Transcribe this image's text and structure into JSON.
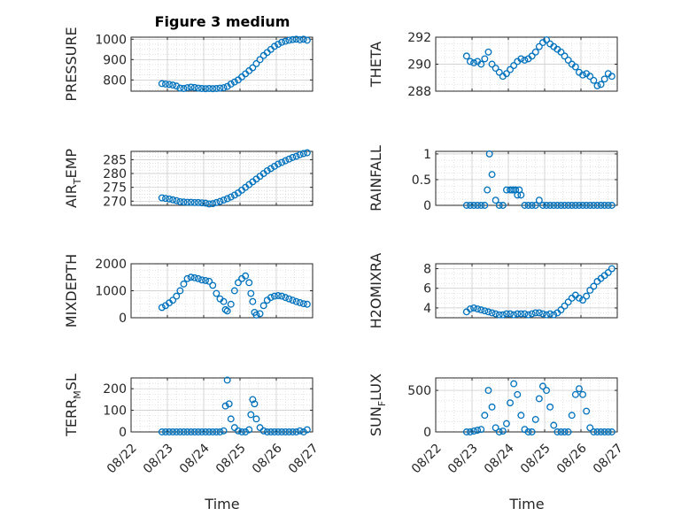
{
  "figure": {
    "title": "Figure 3 medium",
    "xlabel": "Time",
    "marker_color": "#0072BD"
  },
  "chart_data": [
    {
      "type": "scatter",
      "ylabel": "PRESSURE",
      "ylabel_sub": "",
      "ylim": [
        745,
        1010
      ],
      "yticks": [
        800,
        900,
        1000
      ],
      "xlim": [
        0,
        5
      ],
      "x": [
        0.85,
        0.95,
        1.05,
        1.15,
        1.25,
        1.35,
        1.45,
        1.55,
        1.65,
        1.75,
        1.85,
        1.95,
        2.05,
        2.15,
        2.25,
        2.35,
        2.45,
        2.55,
        2.65,
        2.75,
        2.85,
        2.95,
        3.05,
        3.15,
        3.25,
        3.35,
        3.45,
        3.55,
        3.65,
        3.75,
        3.85,
        3.95,
        4.05,
        4.15,
        4.25,
        4.35,
        4.45,
        4.55,
        4.65,
        4.75,
        4.85
      ],
      "y": [
        782,
        780,
        778,
        775,
        770,
        760,
        758,
        762,
        765,
        763,
        760,
        758,
        757,
        758,
        757,
        758,
        760,
        762,
        768,
        780,
        790,
        800,
        815,
        830,
        845,
        860,
        880,
        900,
        920,
        935,
        950,
        965,
        975,
        985,
        990,
        995,
        998,
        1000,
        997,
        1000,
        995
      ]
    },
    {
      "type": "scatter",
      "ylabel": "THETA",
      "ylabel_sub": "",
      "ylim": [
        288,
        292
      ],
      "yticks": [
        288,
        290,
        292
      ],
      "xlim": [
        0,
        5
      ],
      "x": [
        0.85,
        0.95,
        1.05,
        1.15,
        1.25,
        1.35,
        1.45,
        1.55,
        1.65,
        1.75,
        1.85,
        1.95,
        2.05,
        2.15,
        2.25,
        2.35,
        2.45,
        2.55,
        2.65,
        2.75,
        2.85,
        2.95,
        3.05,
        3.15,
        3.25,
        3.35,
        3.45,
        3.55,
        3.65,
        3.75,
        3.85,
        3.95,
        4.05,
        4.15,
        4.25,
        4.35,
        4.45,
        4.55,
        4.65,
        4.75,
        4.85
      ],
      "y": [
        290.6,
        290.2,
        290.1,
        290.2,
        290.0,
        290.4,
        290.9,
        290.0,
        289.7,
        289.4,
        289.1,
        289.3,
        289.6,
        289.9,
        290.2,
        290.4,
        290.3,
        290.4,
        290.6,
        290.9,
        291.3,
        291.6,
        291.8,
        291.5,
        291.3,
        291.1,
        290.9,
        290.6,
        290.3,
        290.0,
        289.8,
        289.4,
        289.2,
        289.3,
        289.1,
        288.8,
        288.4,
        288.5,
        288.9,
        289.3,
        289.1
      ]
    },
    {
      "type": "scatter",
      "ylabel": "AIR",
      "ylabel_sub": "T",
      "ylabel_suffix": "EMP",
      "ylim": [
        268.5,
        288
      ],
      "yticks": [
        270,
        275,
        280,
        285
      ],
      "xlim": [
        0,
        5
      ],
      "x": [
        0.85,
        0.95,
        1.05,
        1.15,
        1.25,
        1.35,
        1.45,
        1.55,
        1.65,
        1.75,
        1.85,
        1.95,
        2.05,
        2.15,
        2.25,
        2.35,
        2.45,
        2.55,
        2.65,
        2.75,
        2.85,
        2.95,
        3.05,
        3.15,
        3.25,
        3.35,
        3.45,
        3.55,
        3.65,
        3.75,
        3.85,
        3.95,
        4.05,
        4.15,
        4.25,
        4.35,
        4.45,
        4.55,
        4.65,
        4.75,
        4.85
      ],
      "y": [
        271.2,
        271.0,
        270.8,
        270.5,
        270.2,
        269.8,
        269.7,
        269.6,
        269.6,
        269.5,
        269.5,
        269.4,
        269.3,
        269.0,
        269.1,
        269.5,
        269.9,
        270.4,
        270.9,
        271.5,
        272.2,
        273.0,
        274.0,
        275.0,
        276.0,
        277.0,
        278.0,
        279.0,
        280.0,
        281.0,
        281.8,
        282.6,
        283.4,
        284.0,
        284.6,
        285.2,
        285.8,
        286.2,
        286.8,
        287.2,
        287.5
      ]
    },
    {
      "type": "scatter",
      "ylabel": "RAINFALL",
      "ylabel_sub": "",
      "ylim": [
        0,
        1.05
      ],
      "yticks": [
        0,
        0.5,
        1
      ],
      "yticklabels": [
        "0",
        "0.5",
        "1"
      ],
      "xlim": [
        0,
        5
      ],
      "x": [
        0.85,
        0.95,
        1.05,
        1.15,
        1.25,
        1.35,
        1.42,
        1.48,
        1.55,
        1.65,
        1.75,
        1.85,
        1.95,
        2.05,
        2.1,
        2.15,
        2.2,
        2.25,
        2.3,
        2.35,
        2.45,
        2.55,
        2.65,
        2.75,
        2.85,
        2.95,
        3.05,
        3.15,
        3.25,
        3.35,
        3.45,
        3.55,
        3.65,
        3.75,
        3.85,
        3.95,
        4.05,
        4.15,
        4.25,
        4.35,
        4.45,
        4.55,
        4.65,
        4.75,
        4.85
      ],
      "y": [
        0,
        0,
        0,
        0,
        0,
        0,
        0.3,
        1.0,
        0.6,
        0.1,
        0,
        0,
        0.3,
        0.3,
        0.3,
        0.3,
        0.3,
        0.2,
        0.3,
        0.2,
        0,
        0,
        0,
        0,
        0.1,
        0,
        0,
        0,
        0,
        0,
        0,
        0,
        0,
        0,
        0,
        0,
        0,
        0,
        0,
        0,
        0,
        0,
        0,
        0,
        0
      ]
    },
    {
      "type": "scatter",
      "ylabel": "MIXDEPTH",
      "ylabel_sub": "",
      "ylim": [
        0,
        2000
      ],
      "yticks": [
        0,
        1000,
        2000
      ],
      "xlim": [
        0,
        5
      ],
      "x": [
        0.85,
        0.95,
        1.05,
        1.15,
        1.25,
        1.35,
        1.45,
        1.55,
        1.65,
        1.75,
        1.85,
        1.95,
        2.05,
        2.15,
        2.25,
        2.35,
        2.45,
        2.55,
        2.6,
        2.65,
        2.75,
        2.85,
        2.95,
        3.05,
        3.15,
        3.25,
        3.3,
        3.35,
        3.4,
        3.45,
        3.55,
        3.65,
        3.75,
        3.85,
        3.95,
        4.05,
        4.15,
        4.25,
        4.35,
        4.45,
        4.55,
        4.65,
        4.75,
        4.85
      ],
      "y": [
        380,
        450,
        550,
        650,
        800,
        1000,
        1250,
        1450,
        1500,
        1480,
        1450,
        1400,
        1380,
        1350,
        1200,
        900,
        700,
        600,
        300,
        250,
        500,
        1000,
        1300,
        1450,
        1550,
        1300,
        900,
        600,
        200,
        100,
        150,
        450,
        650,
        750,
        800,
        820,
        800,
        750,
        700,
        650,
        600,
        560,
        520,
        500
      ]
    },
    {
      "type": "scatter",
      "ylabel": "H2OMIXRA",
      "ylabel_sub": "",
      "ylim": [
        3,
        8.5
      ],
      "yticks": [
        4,
        6,
        8
      ],
      "xlim": [
        0,
        5
      ],
      "x": [
        0.85,
        0.95,
        1.05,
        1.15,
        1.25,
        1.35,
        1.45,
        1.55,
        1.65,
        1.75,
        1.85,
        1.95,
        2.05,
        2.15,
        2.25,
        2.35,
        2.45,
        2.55,
        2.65,
        2.75,
        2.85,
        2.95,
        3.05,
        3.15,
        3.25,
        3.35,
        3.45,
        3.55,
        3.65,
        3.75,
        3.85,
        3.95,
        4.05,
        4.15,
        4.25,
        4.35,
        4.45,
        4.55,
        4.65,
        4.75,
        4.85
      ],
      "y": [
        3.6,
        3.9,
        4.0,
        3.9,
        3.8,
        3.7,
        3.6,
        3.5,
        3.4,
        3.3,
        3.3,
        3.4,
        3.4,
        3.3,
        3.4,
        3.4,
        3.4,
        3.3,
        3.4,
        3.5,
        3.5,
        3.4,
        3.3,
        3.4,
        3.3,
        3.5,
        3.8,
        4.2,
        4.6,
        5.0,
        5.3,
        5.0,
        4.8,
        5.2,
        5.8,
        6.2,
        6.7,
        7.0,
        7.3,
        7.6,
        8.0
      ]
    },
    {
      "type": "scatter",
      "ylabel": "TERR",
      "ylabel_sub": "M",
      "ylabel_suffix": "SL",
      "ylim": [
        0,
        250
      ],
      "yticks": [
        0,
        100,
        200
      ],
      "xlim": [
        0,
        5
      ],
      "x": [
        0.85,
        0.95,
        1.05,
        1.15,
        1.25,
        1.35,
        1.45,
        1.55,
        1.65,
        1.75,
        1.85,
        1.95,
        2.05,
        2.15,
        2.25,
        2.35,
        2.45,
        2.55,
        2.6,
        2.65,
        2.7,
        2.75,
        2.85,
        2.95,
        3.05,
        3.15,
        3.25,
        3.3,
        3.35,
        3.4,
        3.45,
        3.55,
        3.65,
        3.75,
        3.85,
        3.95,
        4.05,
        4.15,
        4.25,
        4.35,
        4.45,
        4.55,
        4.65,
        4.75,
        4.85
      ],
      "y": [
        0,
        0,
        0,
        0,
        0,
        0,
        0,
        0,
        0,
        0,
        0,
        0,
        0,
        0,
        0,
        0,
        0,
        5,
        120,
        240,
        130,
        60,
        20,
        5,
        0,
        0,
        10,
        80,
        150,
        130,
        60,
        20,
        5,
        0,
        0,
        0,
        0,
        0,
        0,
        0,
        0,
        0,
        5,
        0,
        10
      ]
    },
    {
      "type": "scatter",
      "ylabel": "SUN",
      "ylabel_sub": "F",
      "ylabel_suffix": "LUX",
      "ylim": [
        0,
        650
      ],
      "yticks": [
        0,
        500
      ],
      "xlim": [
        0,
        5
      ],
      "x": [
        0.85,
        0.95,
        1.05,
        1.15,
        1.25,
        1.35,
        1.45,
        1.55,
        1.65,
        1.75,
        1.85,
        1.95,
        2.05,
        2.15,
        2.25,
        2.35,
        2.45,
        2.55,
        2.65,
        2.75,
        2.85,
        2.95,
        3.05,
        3.15,
        3.25,
        3.35,
        3.45,
        3.55,
        3.65,
        3.75,
        3.85,
        3.95,
        4.05,
        4.15,
        4.25,
        4.35,
        4.45,
        4.55,
        4.65,
        4.75,
        4.85
      ],
      "y": [
        0,
        0,
        10,
        20,
        30,
        200,
        500,
        300,
        50,
        0,
        10,
        100,
        350,
        580,
        450,
        200,
        30,
        0,
        0,
        150,
        400,
        550,
        500,
        300,
        80,
        0,
        0,
        0,
        0,
        200,
        450,
        520,
        450,
        250,
        50,
        0,
        0,
        0,
        0,
        0,
        0
      ]
    }
  ],
  "xticklabels": [
    "08/22",
    "08/23",
    "08/24",
    "08/25",
    "08/26",
    "08/27"
  ]
}
